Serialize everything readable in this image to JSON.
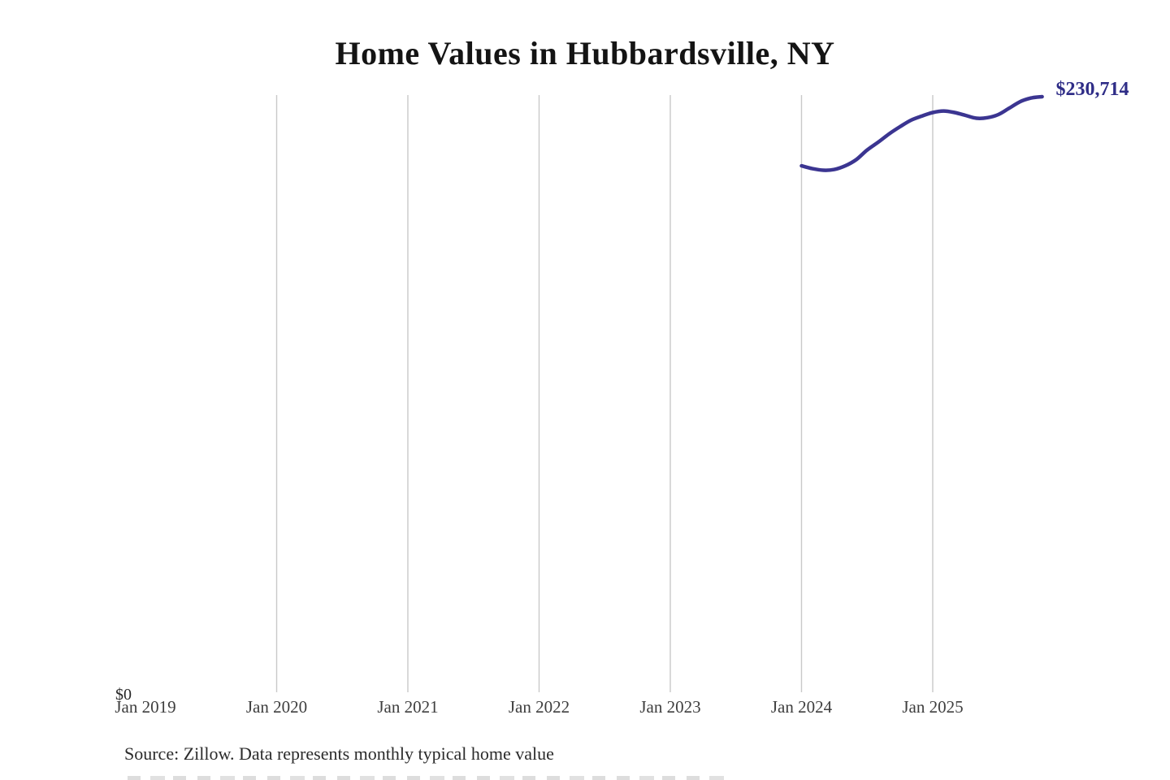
{
  "page": {
    "title": "Home Values in Hubbardsville, NY",
    "source_note": "Source: Zillow. Data represents monthly typical home value"
  },
  "colors": {
    "line": "#3b3591",
    "latest_value_label": "#2f2d87",
    "gridline": "#c9c9c9",
    "axis_label_text": "#3e3e3e",
    "title_text": "#141414",
    "source_text": "#2b2b2b"
  },
  "chart_data": {
    "type": "line",
    "title": "Home Values in Hubbardsville, NY",
    "xlabel": "",
    "ylabel": "",
    "x_ticks": [
      "Jan 2019",
      "Jan 2020",
      "Jan 2021",
      "Jan 2022",
      "Jan 2023",
      "Jan 2024",
      "Jan 2025"
    ],
    "y_axis": {
      "zero_label": "$0",
      "min": 0,
      "max_implied": 231400
    },
    "grid": "vertical",
    "legend": "none",
    "end_label": "$230,714",
    "latest_value": 230714,
    "series": [
      {
        "name": "typical_home_value",
        "x": [
          "2024-01",
          "2024-02",
          "2024-03",
          "2024-04",
          "2024-05",
          "2024-06",
          "2024-07",
          "2024-08",
          "2024-09",
          "2024-10",
          "2024-11",
          "2024-12",
          "2025-01",
          "2025-02",
          "2025-03",
          "2025-04",
          "2025-05",
          "2025-06",
          "2025-07",
          "2025-08",
          "2025-09",
          "2025-10",
          "2025-11"
        ],
        "values": [
          204000,
          202900,
          202300,
          202600,
          204000,
          206400,
          210100,
          213100,
          216300,
          219100,
          221600,
          223200,
          224600,
          225200,
          224600,
          223500,
          222400,
          222600,
          223800,
          226300,
          228800,
          230200,
          230714
        ]
      }
    ]
  }
}
